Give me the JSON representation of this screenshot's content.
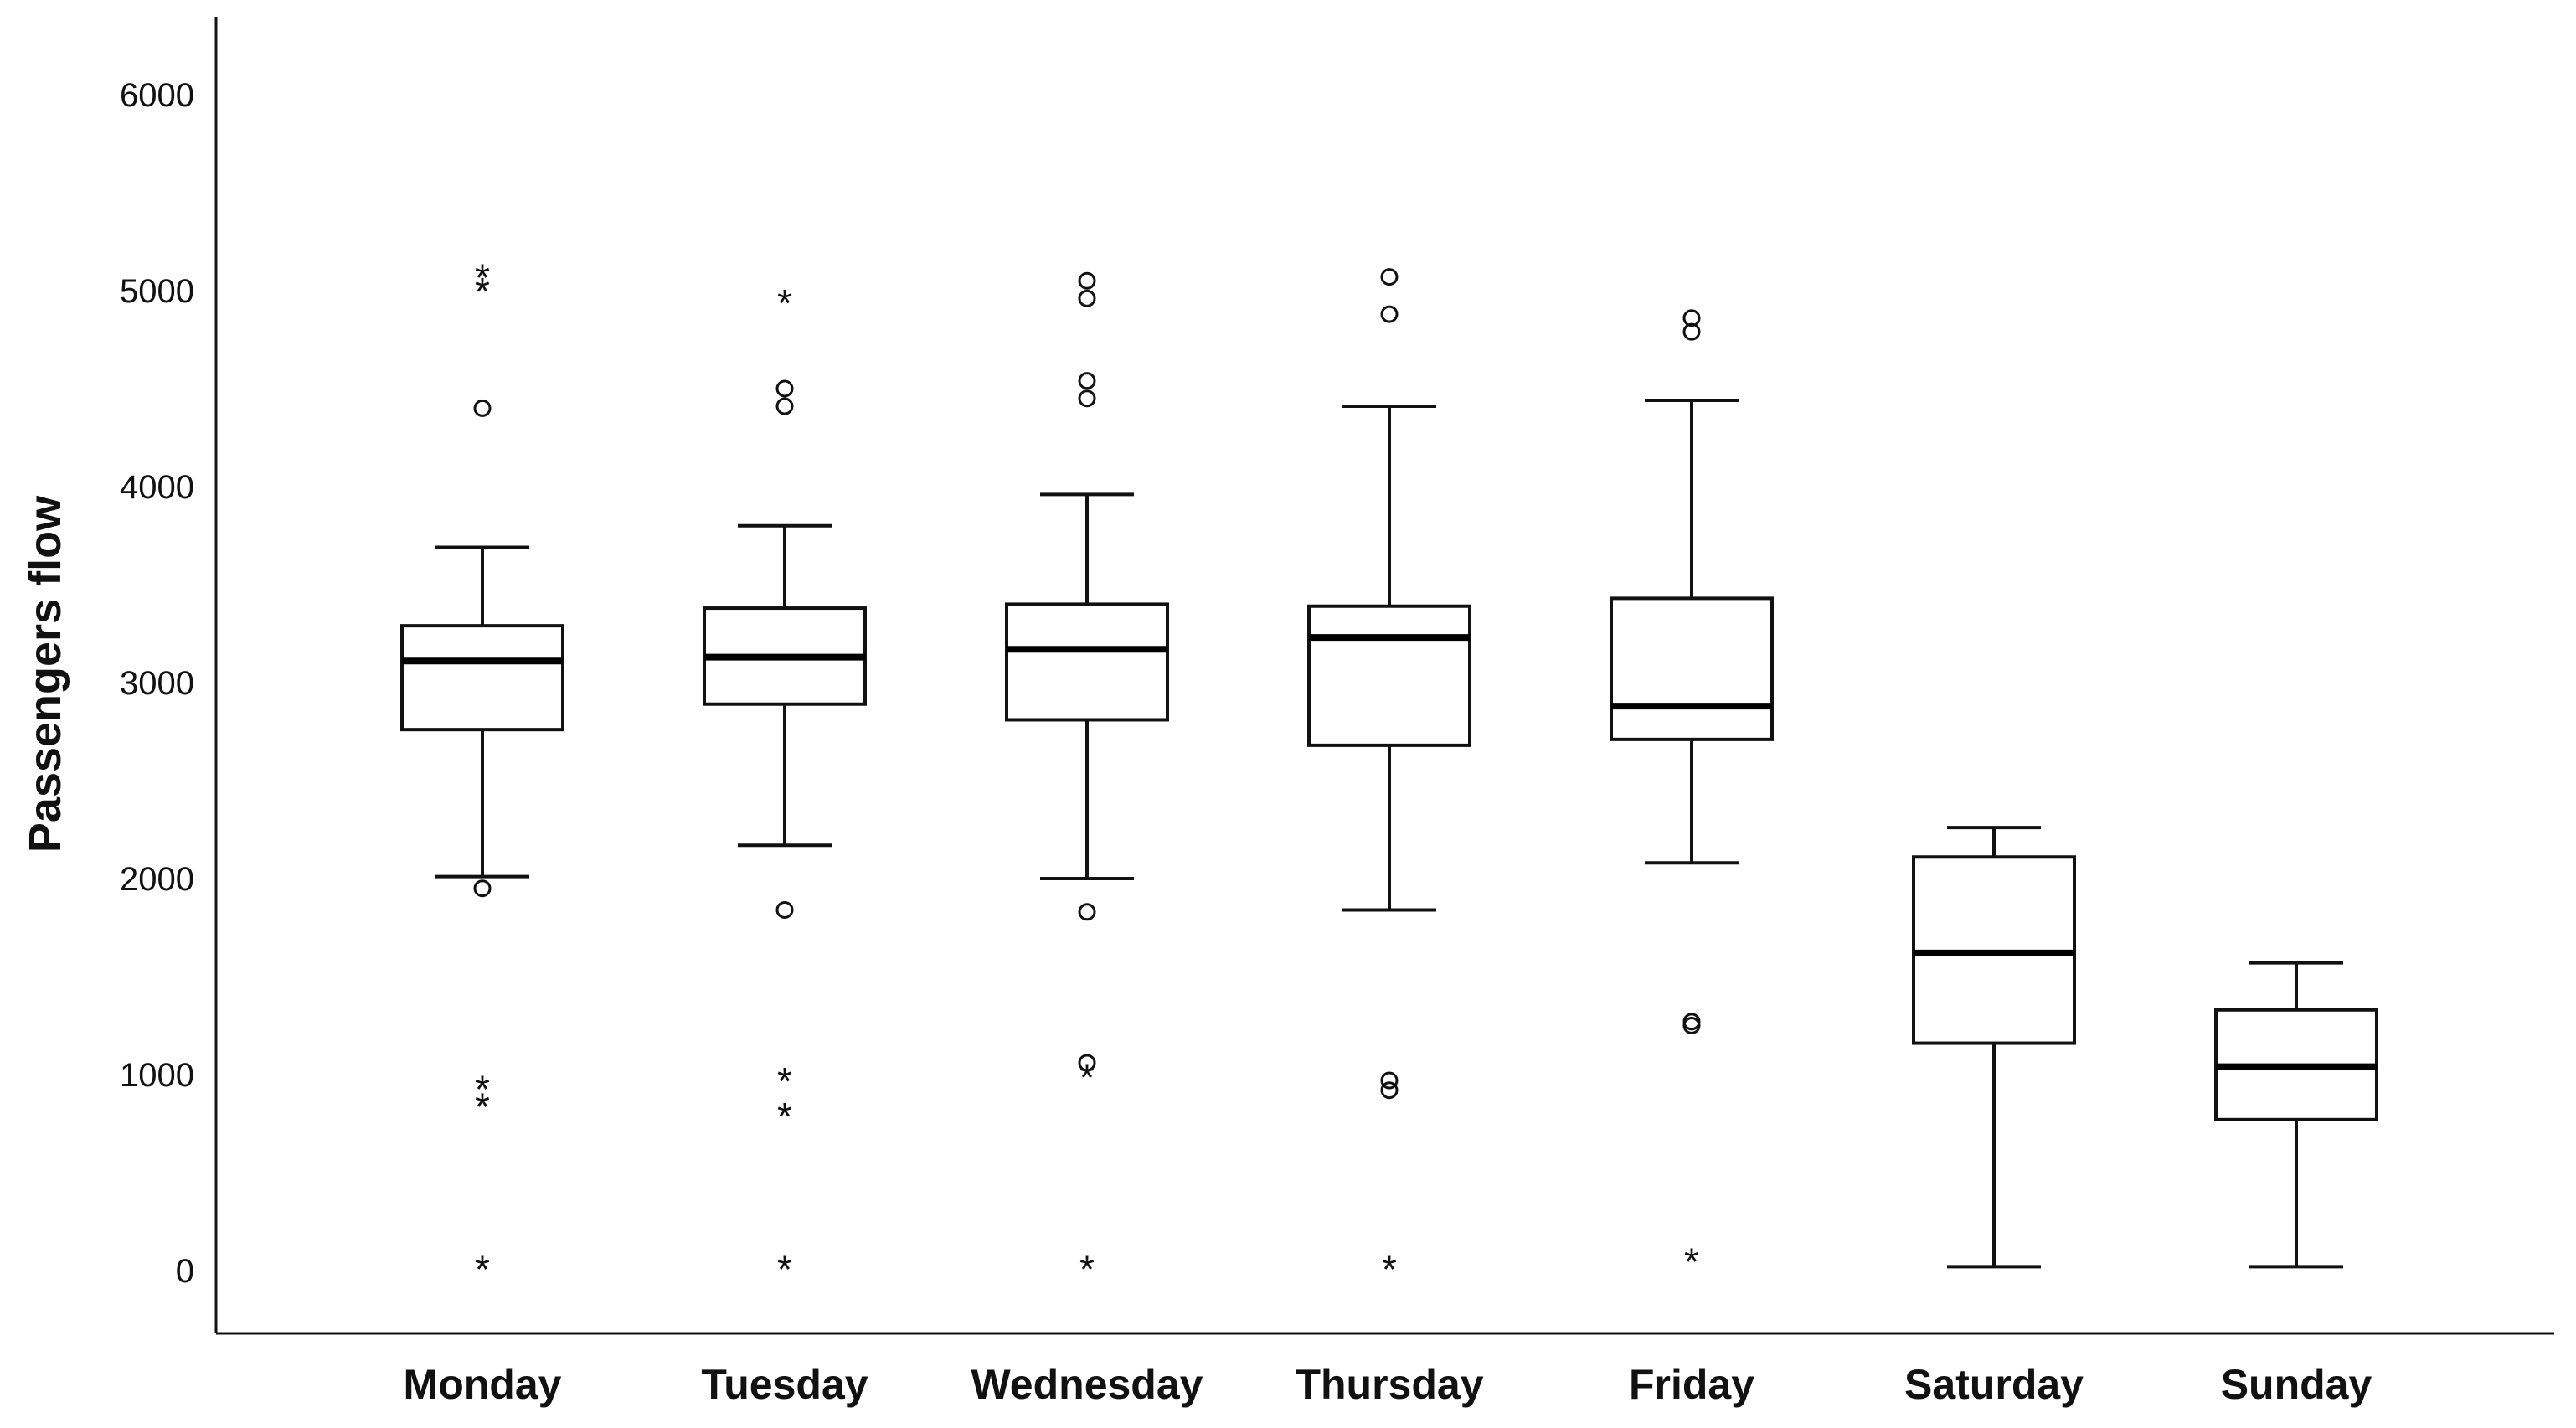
{
  "chart_data": {
    "type": "boxplot",
    "ylabel": "Passengers flow",
    "xlabel": "",
    "ylim": [
      0,
      6350
    ],
    "yticks": [
      "0",
      "1000",
      "2000",
      "3000",
      "4000",
      "5000",
      "6000"
    ],
    "grid": false,
    "categories": [
      "Monday",
      "Tuesday",
      "Wednesday",
      "Thursday",
      "Friday",
      "Saturday",
      "Sunday"
    ],
    "boxes": [
      {
        "category": "Monday",
        "whisker_low": 2010,
        "q1": 2760,
        "median": 3110,
        "q3": 3290,
        "whisker_high": 3690,
        "outliers": [
          1950,
          4400
        ],
        "extremes": [
          40,
          870,
          960,
          5030,
          5100
        ]
      },
      {
        "category": "Tuesday",
        "whisker_low": 2170,
        "q1": 2890,
        "median": 3130,
        "q3": 3380,
        "whisker_high": 3800,
        "outliers": [
          1840,
          4410,
          4500
        ],
        "extremes": [
          40,
          820,
          1000,
          4970
        ]
      },
      {
        "category": "Wednesday",
        "whisker_low": 2000,
        "q1": 2810,
        "median": 3170,
        "q3": 3400,
        "whisker_high": 3960,
        "outliers": [
          1830,
          1060,
          4450,
          4540,
          4960,
          5050
        ],
        "extremes": [
          40,
          1020
        ]
      },
      {
        "category": "Thursday",
        "whisker_low": 1840,
        "q1": 2680,
        "median": 3230,
        "q3": 3390,
        "whisker_high": 4410,
        "outliers": [
          920,
          970,
          4880,
          5070
        ],
        "extremes": [
          40
        ]
      },
      {
        "category": "Friday",
        "whisker_low": 2080,
        "q1": 2710,
        "median": 2880,
        "q3": 3430,
        "whisker_high": 4440,
        "outliers": [
          1250,
          1270,
          4790,
          4860
        ],
        "extremes": [
          80
        ]
      },
      {
        "category": "Saturday",
        "whisker_low": 20,
        "q1": 1160,
        "median": 1620,
        "q3": 2110,
        "whisker_high": 2260,
        "outliers": [],
        "extremes": []
      },
      {
        "category": "Sunday",
        "whisker_low": 20,
        "q1": 770,
        "median": 1040,
        "q3": 1330,
        "whisker_high": 1570,
        "outliers": [],
        "extremes": []
      }
    ]
  }
}
